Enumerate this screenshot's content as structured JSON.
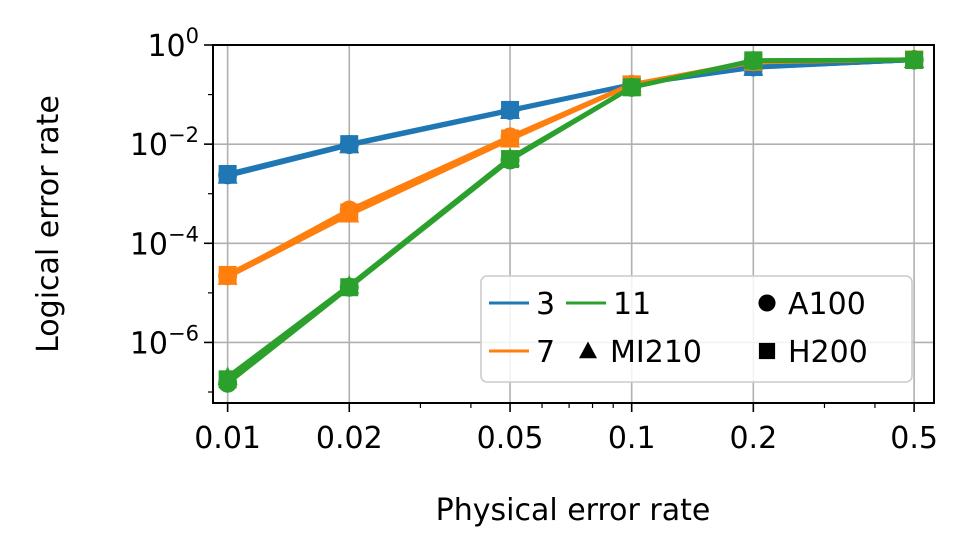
{
  "chart_data": {
    "type": "line",
    "xlabel": "Physical error rate",
    "ylabel": "Logical error rate",
    "xscale": "log",
    "yscale": "log",
    "xlim": [
      0.0092,
      0.56
    ],
    "ylim": [
      6e-08,
      1.0
    ],
    "grid": true,
    "x": [
      0.01,
      0.02,
      0.05,
      0.1,
      0.2,
      0.5
    ],
    "x_tick_labels": [
      "0.01",
      "0.02",
      "0.05",
      "0.1",
      "0.2",
      "0.5"
    ],
    "y_ticks": [
      {
        "base": "10",
        "exp": "0"
      },
      {
        "base": "10",
        "exp": "−2"
      },
      {
        "base": "10",
        "exp": "−4"
      },
      {
        "base": "10",
        "exp": "−6"
      }
    ],
    "series": [
      {
        "name": "3",
        "color": "#1f77b4",
        "values_by_device": {
          "A100": [
            0.0024,
            0.0098,
            0.048,
            0.16,
            0.36,
            0.5
          ],
          "MI210": [
            0.0023,
            0.0095,
            0.047,
            0.16,
            0.35,
            0.5
          ],
          "H200": [
            0.0025,
            0.01,
            0.049,
            0.16,
            0.36,
            0.5
          ]
        }
      },
      {
        "name": "7",
        "color": "#ff7f0e",
        "values_by_device": {
          "A100": [
            2.2e-05,
            0.00047,
            0.014,
            0.16,
            0.46,
            0.51
          ],
          "MI210": [
            2.1e-05,
            0.00038,
            0.0125,
            0.16,
            0.45,
            0.51
          ],
          "H200": [
            2.3e-05,
            0.00042,
            0.013,
            0.16,
            0.46,
            0.51
          ]
        }
      },
      {
        "name": "11",
        "color": "#2ca02c",
        "values_by_device": {
          "A100": [
            1.5e-07,
            1.3e-05,
            0.0048,
            0.14,
            0.48,
            0.5
          ],
          "MI210": [
            2e-07,
            1.4e-05,
            0.0052,
            0.14,
            0.48,
            0.5
          ],
          "H200": [
            1.8e-07,
            1.3e-05,
            0.005,
            0.14,
            0.49,
            0.5
          ]
        }
      }
    ],
    "devices": [
      {
        "name": "A100",
        "marker": "circle"
      },
      {
        "name": "MI210",
        "marker": "triangle"
      },
      {
        "name": "H200",
        "marker": "square"
      }
    ],
    "legend": {
      "placement": "lower-right",
      "entries": [
        "3",
        "11",
        "A100",
        "7",
        "MI210",
        "H200"
      ]
    }
  }
}
